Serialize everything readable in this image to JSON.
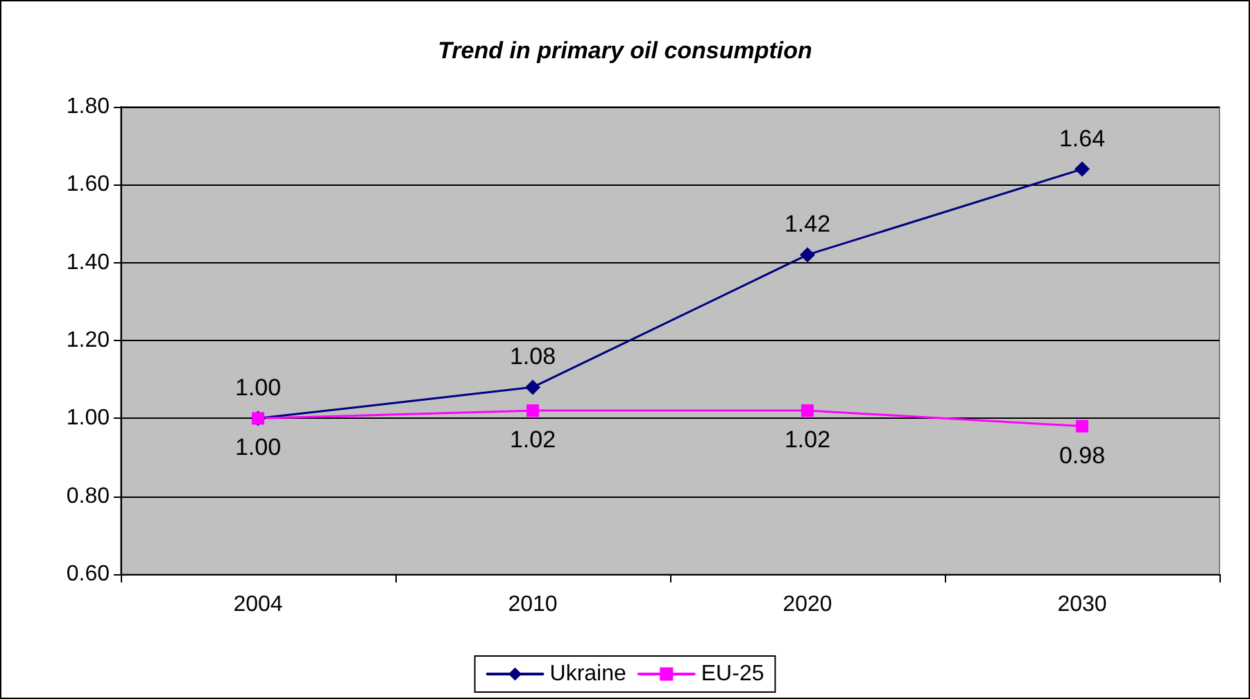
{
  "chart_data": {
    "type": "line",
    "title": "Trend in primary oil consumption",
    "categories": [
      "2004",
      "2010",
      "2020",
      "2030"
    ],
    "series": [
      {
        "name": "Ukraine",
        "color": "#000080",
        "marker": "diamond",
        "values": [
          1.0,
          1.08,
          1.42,
          1.64
        ],
        "value_labels": [
          "1.00",
          "1.08",
          "1.42",
          "1.64"
        ]
      },
      {
        "name": "EU-25",
        "color": "#ff00ff",
        "marker": "square",
        "values": [
          1.0,
          1.02,
          1.02,
          0.98
        ],
        "value_labels": [
          "1.00",
          "1.02",
          "1.02",
          "0.98"
        ]
      }
    ],
    "ylim": [
      0.6,
      1.8
    ],
    "yticks": [
      {
        "value": 0.6,
        "label": "0.60"
      },
      {
        "value": 0.8,
        "label": "0.80"
      },
      {
        "value": 1.0,
        "label": "1.00"
      },
      {
        "value": 1.2,
        "label": "1.20"
      },
      {
        "value": 1.4,
        "label": "1.40"
      },
      {
        "value": 1.6,
        "label": "1.60"
      },
      {
        "value": 1.8,
        "label": "1.80"
      }
    ],
    "grid": "y",
    "legend": "bottom",
    "line_style": "solid"
  }
}
